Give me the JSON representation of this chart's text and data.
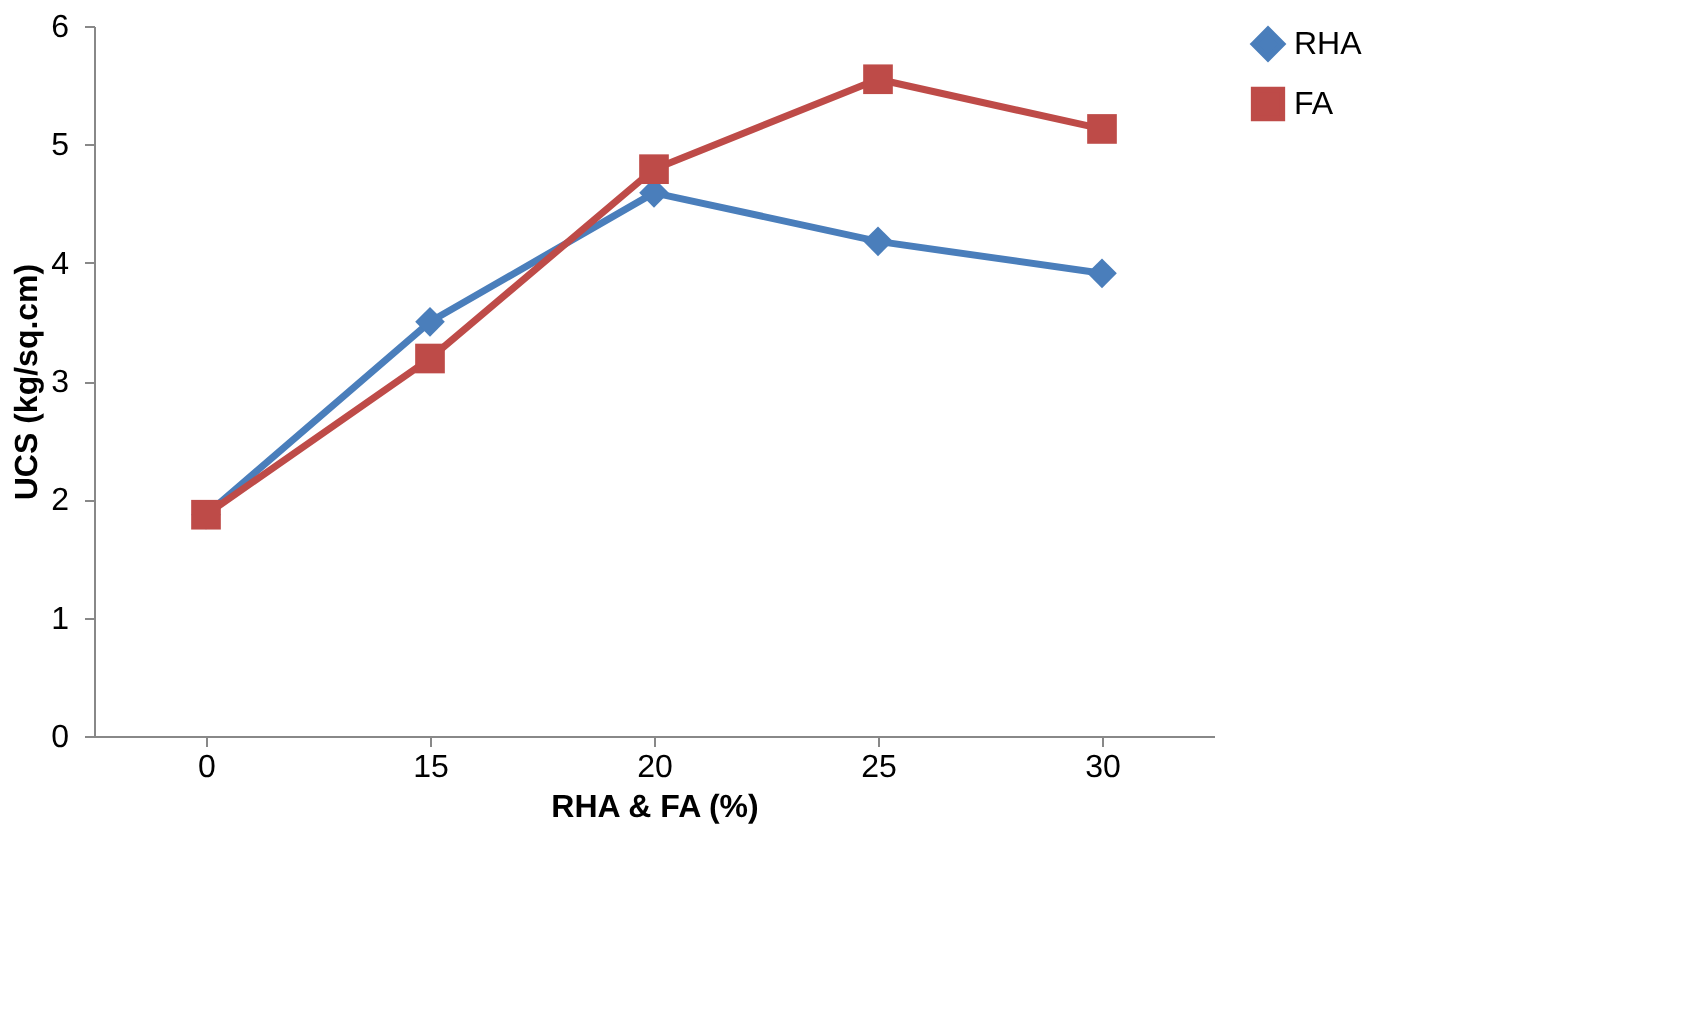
{
  "chart_data": {
    "type": "line",
    "xlabel": "RHA & FA (%)",
    "ylabel": "UCS (kg/sq.cm)",
    "categories": [
      "0",
      "15",
      "20",
      "25",
      "30"
    ],
    "series": [
      {
        "name": "RHA",
        "color": "#4a7ebb",
        "marker": "diamond",
        "values": [
          1.87,
          3.5,
          4.59,
          4.18,
          3.91
        ]
      },
      {
        "name": "FA",
        "color": "#be4b48",
        "marker": "square",
        "values": [
          1.87,
          3.19,
          4.79,
          5.55,
          5.13
        ]
      }
    ],
    "ylim": [
      0,
      6
    ],
    "yticks": [
      0,
      1,
      2,
      3,
      4,
      5,
      6
    ],
    "grid": false,
    "legend": "right",
    "line_style": "solid"
  }
}
